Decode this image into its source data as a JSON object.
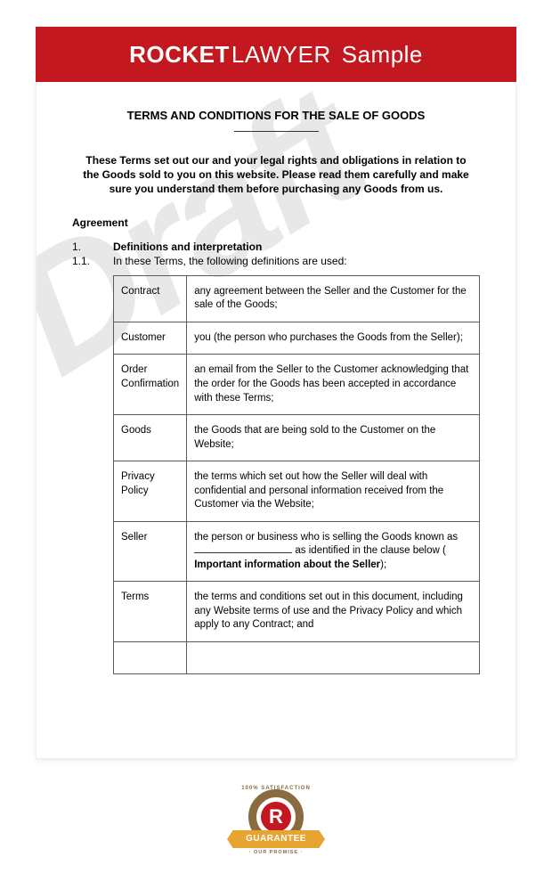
{
  "colors": {
    "brand_red": "#c3181f",
    "watermark_gray": "#e8e8e8",
    "border_gray": "#5a5a5a",
    "badge_brown": "#8a6b3f",
    "badge_orange": "#e8a430",
    "page_bg": "#ffffff"
  },
  "header": {
    "brand_bold": "ROCKET",
    "brand_light": "LAWYER",
    "sample": "Sample"
  },
  "watermark": "Draft",
  "document": {
    "title": "TERMS AND CONDITIONS FOR THE SALE OF GOODS",
    "intro": "These Terms set out our and your legal rights and obligations in relation to the Goods sold to you on this website. Please read them carefully and make sure you understand them before purchasing any Goods from us.",
    "agreement_heading": "Agreement",
    "clause1": {
      "num": "1.",
      "title": "Definitions and interpretation"
    },
    "clause1_1": {
      "num": "1.1.",
      "text": "In these Terms, the following definitions are used:"
    },
    "definitions": [
      {
        "term": "Contract",
        "def": "any agreement between the Seller and the Customer for the sale of the Goods;"
      },
      {
        "term": "Customer",
        "def": "you (the person who purchases the Goods from the Seller);"
      },
      {
        "term": "Order Confirmation",
        "def": "an email from the Seller to the Customer acknowledging that the order for the Goods has been accepted in accordance with these Terms;"
      },
      {
        "term": "Goods",
        "def": "the Goods that are being sold to the Customer on the Website;"
      },
      {
        "term": "Privacy Policy",
        "def": "the terms which set out how the Seller will deal with confidential and personal information received from the Customer via the Website;"
      },
      {
        "term": "Seller",
        "def_prefix": "the person or business who is selling the Goods known as ",
        "def_mid": " as identified in the clause below ( ",
        "def_bold": "Important information about the Seller",
        "def_suffix": ");"
      },
      {
        "term": "Terms",
        "def": "the terms and conditions set out in this document, including any Website terms of use and the Privacy Policy and which apply to any Contract; and"
      }
    ]
  },
  "badge": {
    "arc_text": "100% SATISFACTION",
    "letter": "R",
    "ribbon": "GUARANTEE",
    "sub": "· OUR PROMISE ·"
  }
}
